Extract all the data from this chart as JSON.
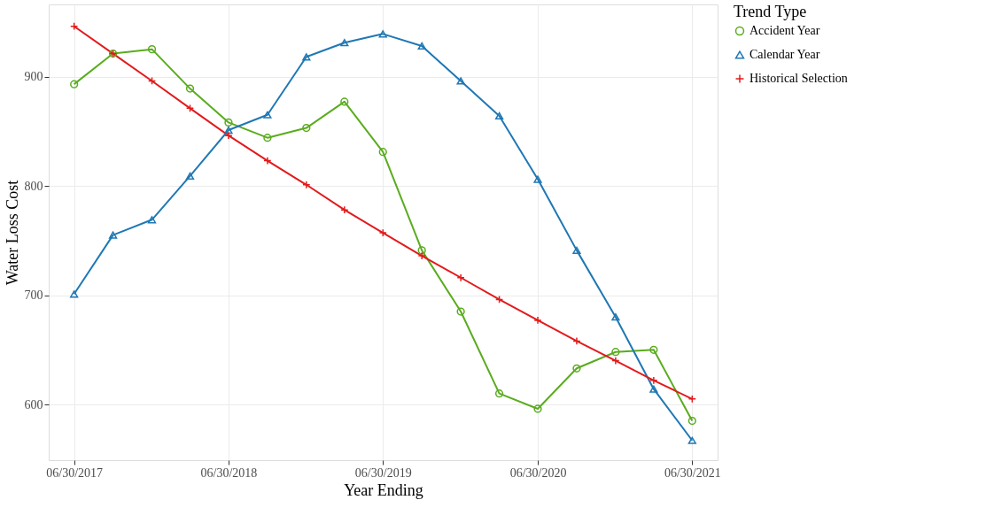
{
  "chart_data": {
    "type": "line",
    "xlabel": "Year Ending",
    "ylabel": "Water Loss Cost",
    "legend_title": "Trend Type",
    "legend": "right",
    "grid": true,
    "line_style": "solid",
    "x": [
      "2017-06-30",
      "2017-09-30",
      "2017-12-31",
      "2018-03-31",
      "2018-06-30",
      "2018-09-30",
      "2018-12-31",
      "2019-03-31",
      "2019-06-30",
      "2019-09-30",
      "2019-12-31",
      "2020-03-31",
      "2020-06-30",
      "2020-09-30",
      "2020-12-31",
      "2021-03-31",
      "2021-06-30"
    ],
    "xlim": [
      "2017-05-01",
      "2021-08-29"
    ],
    "xticks": [
      {
        "value": "2017-06-30",
        "label": "06/30/2017"
      },
      {
        "value": "2018-06-30",
        "label": "06/30/2018"
      },
      {
        "value": "2019-06-30",
        "label": "06/30/2019"
      },
      {
        "value": "2020-06-30",
        "label": "06/30/2020"
      },
      {
        "value": "2021-06-30",
        "label": "06/30/2021"
      }
    ],
    "ylim": [
      549,
      966
    ],
    "yticks": [
      600,
      700,
      800,
      900
    ],
    "series": [
      {
        "name": "Accident Year",
        "color": "#5aac1e",
        "marker": "circle",
        "values": [
          893,
          921,
          925,
          889,
          858,
          844,
          853,
          877,
          831,
          741,
          685,
          610,
          596,
          633,
          648,
          650,
          585
        ]
      },
      {
        "name": "Calendar Year",
        "color": "#1f78b4",
        "marker": "triangle",
        "values": [
          701,
          755,
          769,
          809,
          851,
          865,
          918,
          931,
          939,
          928,
          896,
          864,
          806,
          741,
          680,
          614,
          567
        ]
      },
      {
        "name": "Historical Selection",
        "color": "#e31a1c",
        "marker": "cross",
        "values": [
          946,
          921,
          896,
          871,
          846,
          823,
          801,
          778,
          757,
          736,
          716,
          696,
          677,
          658,
          640,
          622,
          605
        ]
      }
    ]
  }
}
